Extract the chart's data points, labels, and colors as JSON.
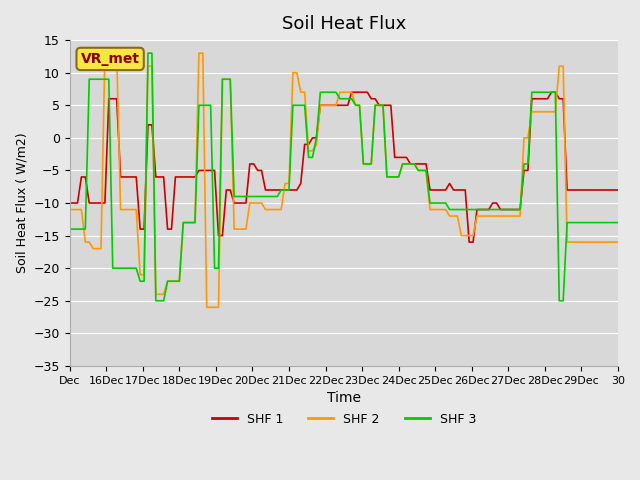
{
  "title": "Soil Heat Flux",
  "xlabel": "Time",
  "ylabel": "Soil Heat Flux ( W/m2)",
  "ylim": [
    -35,
    15
  ],
  "yticks": [
    -35,
    -30,
    -25,
    -20,
    -15,
    -10,
    -5,
    0,
    5,
    10,
    15
  ],
  "background_color": "#e8e8e8",
  "plot_bg_color": "#d8d8d8",
  "annotation_text": "VR_met",
  "legend_labels": [
    "SHF 1",
    "SHF 2",
    "SHF 3"
  ],
  "colors": [
    "#cc0000",
    "#ff9900",
    "#00cc00"
  ],
  "x_tick_labels": [
    "Dec",
    "16Dec",
    "17Dec",
    "18Dec",
    "19Dec",
    "20Dec",
    "21Dec",
    "22Dec",
    "23Dec",
    "24Dec",
    "25Dec",
    "26Dec",
    "27Dec",
    "28Dec",
    "29Dec",
    "30"
  ],
  "shf1": [
    -10,
    -10,
    -10,
    -6,
    -6,
    -10,
    -10,
    -10,
    -10,
    -10,
    6,
    6,
    6,
    -6,
    -6,
    -6,
    -6,
    -6,
    -14,
    -14,
    2,
    2,
    -6,
    -6,
    -6,
    -14,
    -14,
    -6,
    -6,
    -6,
    -6,
    -6,
    -6,
    -5,
    -5,
    -5,
    -5,
    -5,
    -15,
    -15,
    -8,
    -8,
    -10,
    -10,
    -10,
    -10,
    -4,
    -4,
    -5,
    -5,
    -8,
    -8,
    -8,
    -8,
    -8,
    -8,
    -8,
    -8,
    -8,
    -7,
    -1,
    -1,
    0,
    0,
    5,
    5,
    5,
    5,
    5,
    5,
    5,
    5,
    7,
    7,
    7,
    7,
    7,
    6,
    6,
    5,
    5,
    5,
    5,
    -3,
    -3,
    -3,
    -3,
    -4,
    -4,
    -4,
    -4,
    -4,
    -8,
    -8,
    -8,
    -8,
    -8,
    -7,
    -8,
    -8,
    -8,
    -8,
    -16,
    -16,
    -11,
    -11,
    -11,
    -11,
    -10,
    -10,
    -11,
    -11,
    -11,
    -11,
    -11,
    -11,
    -5,
    -5,
    6,
    6,
    6,
    6,
    6,
    7,
    7,
    6,
    6,
    -8,
    -8,
    -8,
    -8,
    -8,
    -8,
    -8,
    -8,
    -8,
    -8,
    -8,
    -8,
    -8,
    -8
  ],
  "shf2": [
    -11,
    -11,
    -11,
    -11,
    -16,
    -16,
    -17,
    -17,
    -17,
    13,
    13,
    13,
    13,
    -11,
    -11,
    -11,
    -11,
    -11,
    -21,
    -21,
    11,
    11,
    -24,
    -24,
    -24,
    -22,
    -22,
    -22,
    -22,
    -13,
    -13,
    -13,
    -13,
    13,
    13,
    -26,
    -26,
    -26,
    -26,
    9,
    9,
    9,
    -14,
    -14,
    -14,
    -14,
    -10,
    -10,
    -10,
    -10,
    -11,
    -11,
    -11,
    -11,
    -11,
    -7,
    -7,
    10,
    10,
    7,
    7,
    -2,
    -2,
    -1,
    5,
    5,
    5,
    5,
    5,
    7,
    7,
    7,
    7,
    5,
    5,
    -4,
    -4,
    -4,
    5,
    5,
    5,
    -6,
    -6,
    -6,
    -6,
    -4,
    -4,
    -4,
    -4,
    -5,
    -5,
    -5,
    -11,
    -11,
    -11,
    -11,
    -11,
    -12,
    -12,
    -12,
    -15,
    -15,
    -15,
    -15,
    -12,
    -12,
    -12,
    -12,
    -12,
    -12,
    -12,
    -12,
    -12,
    -12,
    -12,
    -12,
    0,
    0,
    4,
    4,
    4,
    4,
    4,
    4,
    4,
    11,
    11,
    -16,
    -16,
    -16,
    -16,
    -16,
    -16,
    -16,
    -16,
    -16,
    -16,
    -16,
    -16,
    -16,
    -16
  ],
  "shf3": [
    -14,
    -14,
    -14,
    -14,
    -14,
    9,
    9,
    9,
    9,
    9,
    9,
    -20,
    -20,
    -20,
    -20,
    -20,
    -20,
    -20,
    -22,
    -22,
    13,
    13,
    -25,
    -25,
    -25,
    -22,
    -22,
    -22,
    -22,
    -13,
    -13,
    -13,
    -13,
    5,
    5,
    5,
    5,
    -20,
    -20,
    9,
    9,
    9,
    -9,
    -9,
    -9,
    -9,
    -9,
    -9,
    -9,
    -9,
    -9,
    -9,
    -9,
    -9,
    -8,
    -8,
    -8,
    5,
    5,
    5,
    5,
    -3,
    -3,
    0,
    7,
    7,
    7,
    7,
    7,
    6,
    6,
    6,
    6,
    5,
    5,
    -4,
    -4,
    -4,
    5,
    5,
    5,
    -6,
    -6,
    -6,
    -6,
    -4,
    -4,
    -4,
    -4,
    -5,
    -5,
    -5,
    -10,
    -10,
    -10,
    -10,
    -10,
    -11,
    -11,
    -11,
    -11,
    -11,
    -11,
    -11,
    -11,
    -11,
    -11,
    -11,
    -11,
    -11,
    -11,
    -11,
    -11,
    -11,
    -11,
    -11,
    -4,
    -4,
    7,
    7,
    7,
    7,
    7,
    7,
    7,
    -25,
    -25,
    -13,
    -13,
    -13,
    -13,
    -13,
    -13,
    -13,
    -13,
    -13,
    -13,
    -13,
    -13,
    -13,
    -13
  ]
}
